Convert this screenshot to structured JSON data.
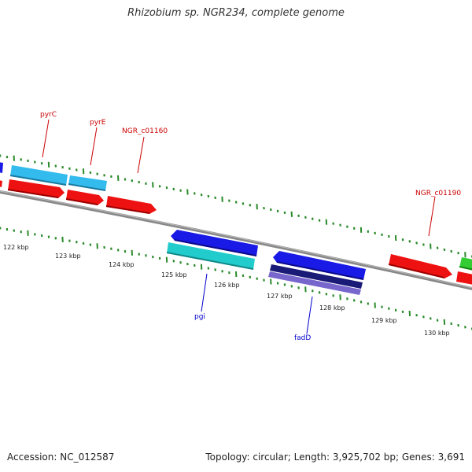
{
  "title": "Rhizobium sp. NGR234, complete genome",
  "footer": {
    "accession": "Accession: NC_012587",
    "topology": "Topology: circular; Length: 3,925,702 bp; Genes: 3,691"
  },
  "colors": {
    "backbone": "#808080",
    "tick": "#2a8a2a",
    "label_red": "#cc0000",
    "label_blue": "#0000cc",
    "gene_blue": "#1a1ae6",
    "gene_lightblue": "#33bbee",
    "gene_red": "#ee1111",
    "gene_cyan": "#22cccc",
    "gene_navy": "#1a1a77",
    "gene_purple": "#7766cc",
    "gene_green": "#33cc33"
  },
  "scale_labels": [
    "122 kbp",
    "123 kbp",
    "124 kbp",
    "125 kbp",
    "126 kbp",
    "127 kbp",
    "128 kbp",
    "129 kbp",
    "130 kbp"
  ],
  "gene_labels": [
    {
      "text": "pyrC",
      "color": "red"
    },
    {
      "text": "pyrE",
      "color": "red"
    },
    {
      "text": "NGR_c01160",
      "color": "red"
    },
    {
      "text": "NGR_c01190",
      "color": "red"
    },
    {
      "text": "pgi",
      "color": "blue"
    },
    {
      "text": "fadD",
      "color": "blue"
    }
  ]
}
